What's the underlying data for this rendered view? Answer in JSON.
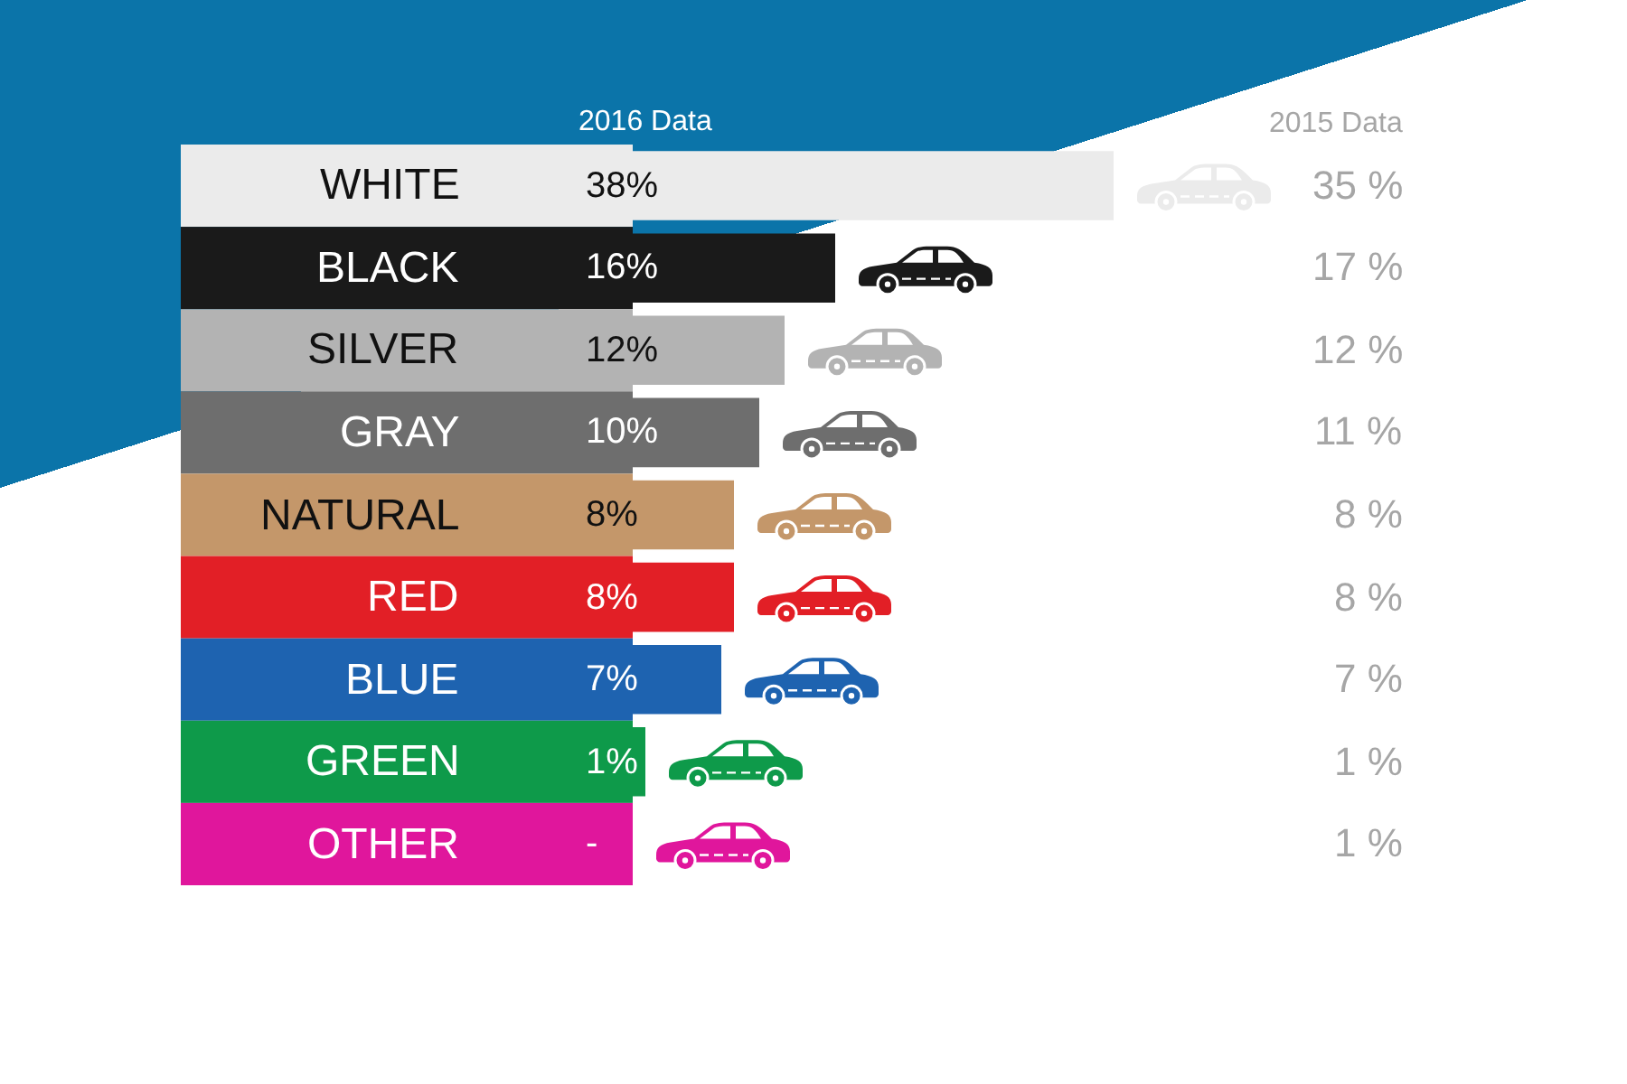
{
  "chart_data": [
    {
      "type": "bar",
      "orientation": "horizontal",
      "categories": [
        "WHITE",
        "BLACK",
        "SILVER",
        "GRAY",
        "NATURAL",
        "RED",
        "BLUE",
        "GREEN",
        "OTHER"
      ],
      "series": [
        {
          "name": "2016 Data",
          "colors": [
            "#ebebeb",
            "#1a1a1a",
            "#b3b3b3",
            "#6e6e6e",
            "#c4976a",
            "#e21f26",
            "#1e63b0",
            "#0e9a4a",
            "#e0169c"
          ],
          "values": [
            38,
            16,
            12,
            10,
            8,
            8,
            7,
            1,
            null
          ],
          "value_labels": [
            "38%",
            "16%",
            "12%",
            "10%",
            "8%",
            "8%",
            "7%",
            "1%",
            "-"
          ]
        }
      ]
    },
    {
      "type": "other",
      "title": "2015 Data",
      "annotations": [
        "35 %",
        "17 %",
        "12 %",
        "11 %",
        "8 %",
        "8 %",
        "7 %",
        "1 %",
        "1 %"
      ]
    }
  ]
}
